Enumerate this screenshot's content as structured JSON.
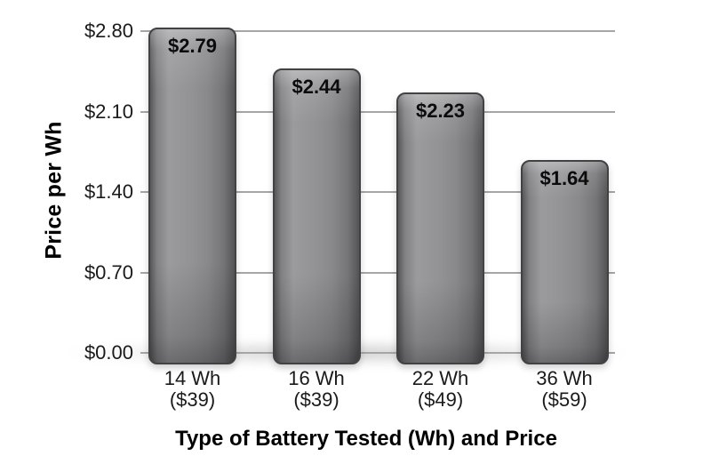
{
  "chart_data": {
    "type": "bar",
    "title": "",
    "xlabel": "Type of Battery Tested (Wh) and Price",
    "ylabel": "Price per Wh",
    "categories": [
      {
        "label": "14 Wh",
        "sub": "($39)"
      },
      {
        "label": "16 Wh",
        "sub": "($39)"
      },
      {
        "label": "22 Wh",
        "sub": "($49)"
      },
      {
        "label": "36 Wh",
        "sub": "($59)"
      }
    ],
    "values": [
      2.79,
      2.44,
      2.23,
      1.64
    ],
    "value_labels": [
      "$2.79",
      "$2.44",
      "$2.23",
      "$1.64"
    ],
    "yticks": [
      {
        "label": "$0.00",
        "value": 0.0
      },
      {
        "label": "$0.70",
        "value": 0.7
      },
      {
        "label": "$1.40",
        "value": 1.4
      },
      {
        "label": "$2.10",
        "value": 2.1
      },
      {
        "label": "$2.80",
        "value": 2.8
      }
    ],
    "ylim": [
      0,
      2.8
    ],
    "grid": true,
    "legend": false,
    "colors": {
      "bar_base": "#8e8e90",
      "bar_edge": "#424244",
      "gridline": "#a6a6a6",
      "text": "#000000",
      "background": "#ffffff"
    }
  }
}
